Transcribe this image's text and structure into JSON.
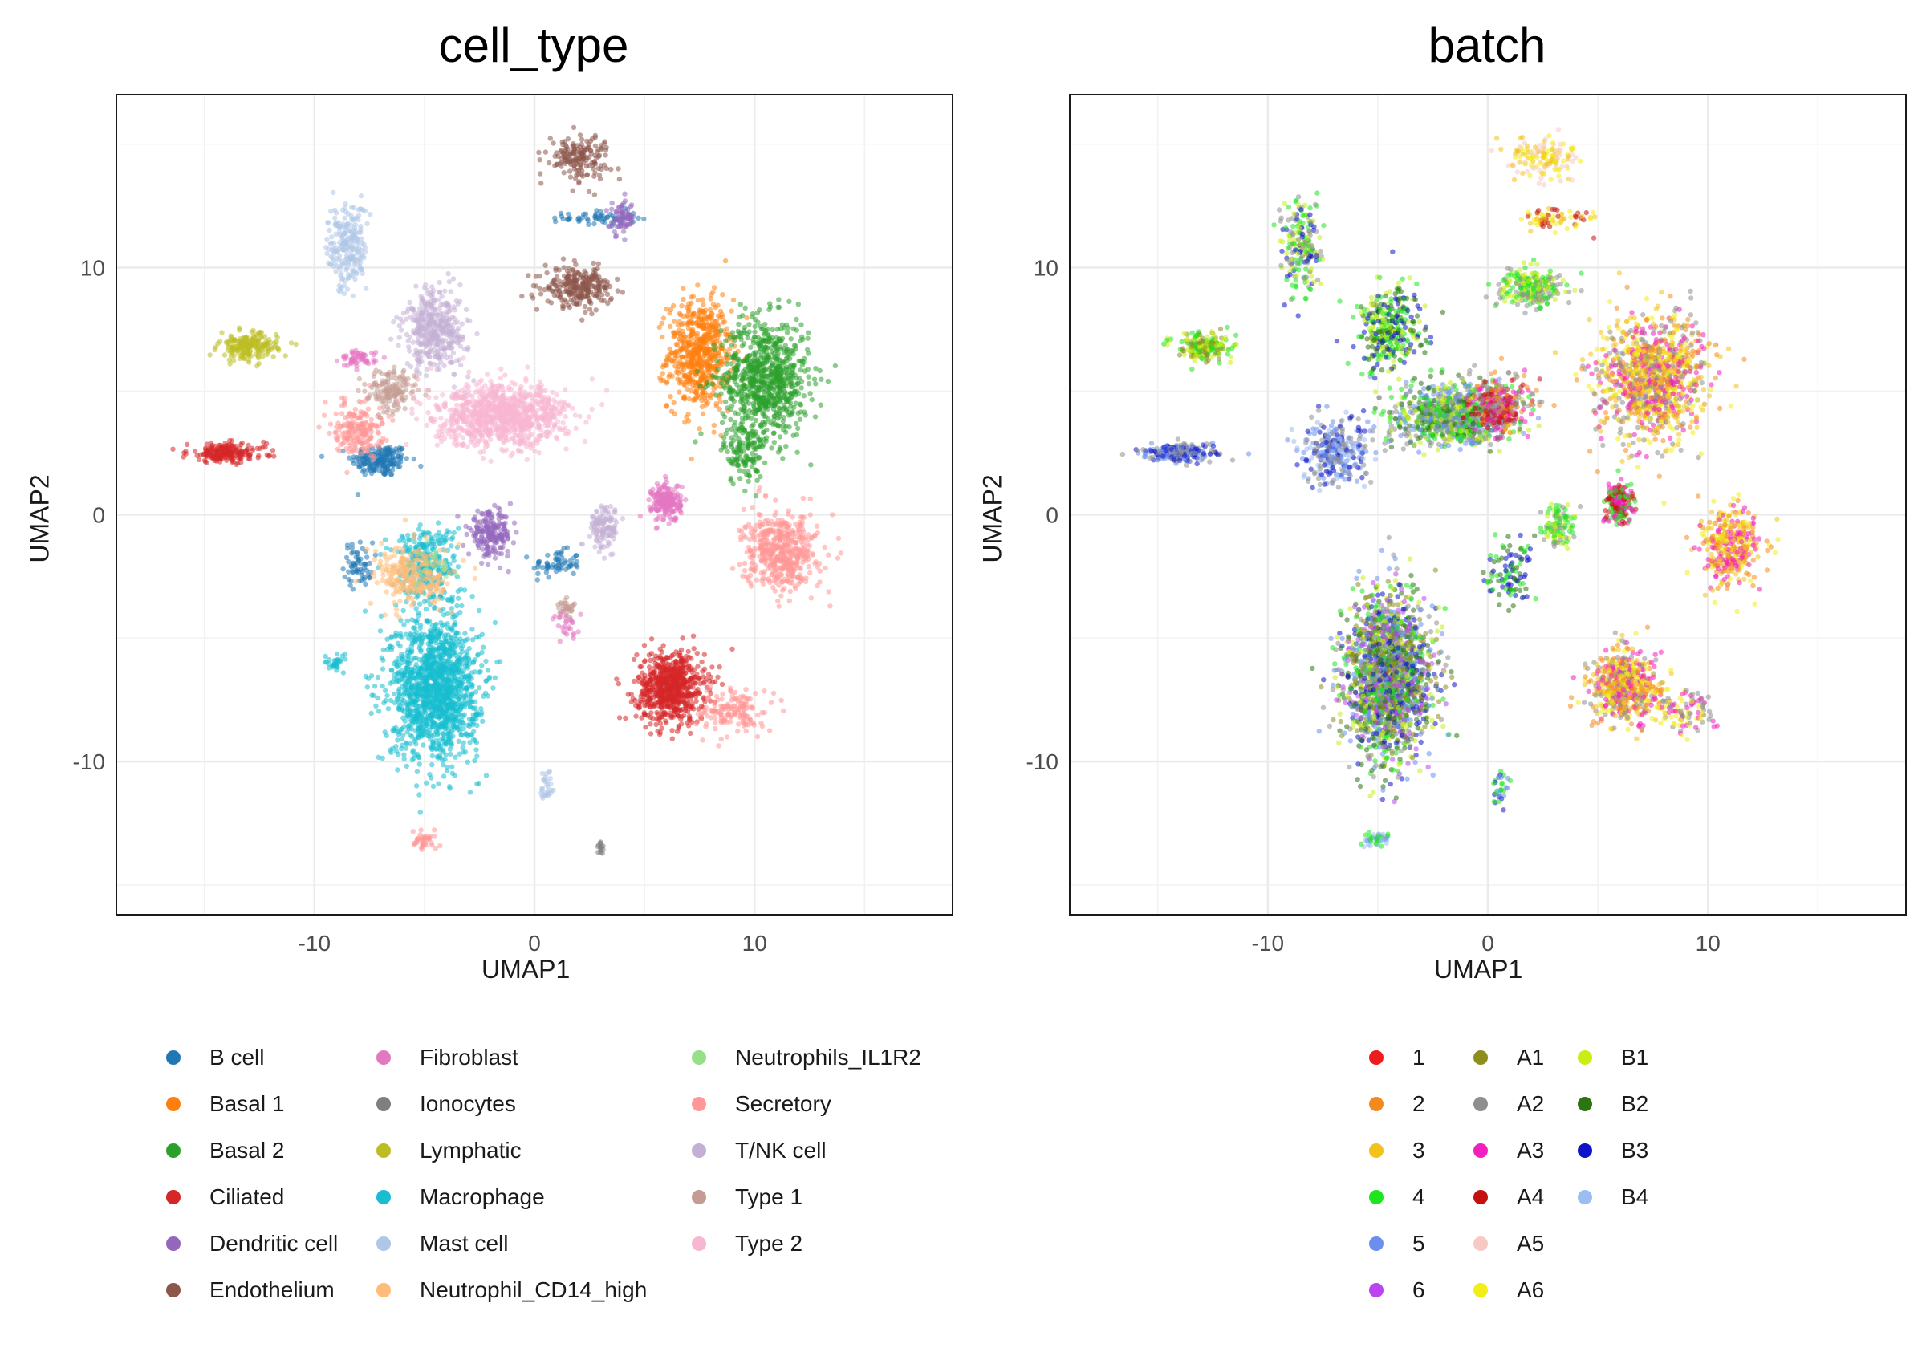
{
  "chart_data": [
    {
      "type": "scatter",
      "title": "cell_type",
      "xlabel": "UMAP1",
      "ylabel": "UMAP2",
      "xlim": [
        -19,
        19
      ],
      "ylim": [
        -16.2,
        17
      ],
      "x_ticks": [
        -10,
        0,
        10
      ],
      "y_ticks": [
        -10,
        0,
        10
      ],
      "x_tick_labels": [
        "-10",
        "0",
        "10"
      ],
      "y_tick_labels": [
        "-10",
        "0",
        "10"
      ],
      "grid": true,
      "legend_position": "bottom",
      "series": [
        {
          "name": "B cell",
          "color": "#1f77b4",
          "clusters": [
            {
              "x": -7,
              "y": 2.2,
              "sx": 1.2,
              "sy": 0.6,
              "n": 180
            },
            {
              "x": 1,
              "y": -2,
              "sx": 1.0,
              "sy": 0.5,
              "n": 60
            },
            {
              "x": 3,
              "y": 12,
              "sx": 1.5,
              "sy": 0.3,
              "n": 60
            },
            {
              "x": -8,
              "y": -2,
              "sx": 0.6,
              "sy": 0.8,
              "n": 60
            }
          ]
        },
        {
          "name": "Basal 1",
          "color": "#ff7f0e",
          "clusters": [
            {
              "x": 7.5,
              "y": 6.5,
              "sx": 1.3,
              "sy": 2.0,
              "n": 600
            }
          ]
        },
        {
          "name": "Basal 2",
          "color": "#2ca02c",
          "clusters": [
            {
              "x": 10.5,
              "y": 5.5,
              "sx": 1.8,
              "sy": 2.2,
              "n": 800
            },
            {
              "x": 9.5,
              "y": 2.5,
              "sx": 0.8,
              "sy": 1.2,
              "n": 120
            }
          ]
        },
        {
          "name": "Ciliated",
          "color": "#d62728",
          "clusters": [
            {
              "x": 6.2,
              "y": -7,
              "sx": 1.4,
              "sy": 1.3,
              "n": 700
            },
            {
              "x": -14,
              "y": 2.5,
              "sx": 1.6,
              "sy": 0.35,
              "n": 200
            }
          ]
        },
        {
          "name": "Dendritic cell",
          "color": "#9467bd",
          "clusters": [
            {
              "x": -2,
              "y": -0.8,
              "sx": 0.9,
              "sy": 0.8,
              "n": 200
            },
            {
              "x": 4,
              "y": 12,
              "sx": 0.5,
              "sy": 0.6,
              "n": 70
            }
          ]
        },
        {
          "name": "Endothelium",
          "color": "#8c564b",
          "clusters": [
            {
              "x": 2,
              "y": 9.2,
              "sx": 1.4,
              "sy": 0.7,
              "n": 260
            },
            {
              "x": 2,
              "y": 14.5,
              "sx": 1.3,
              "sy": 0.8,
              "n": 170
            }
          ]
        },
        {
          "name": "Fibroblast",
          "color": "#e377c2",
          "clusters": [
            {
              "x": 6,
              "y": 0.5,
              "sx": 0.6,
              "sy": 0.7,
              "n": 200
            },
            {
              "x": -8,
              "y": 6.3,
              "sx": 0.7,
              "sy": 0.3,
              "n": 60
            },
            {
              "x": 1.5,
              "y": -4.5,
              "sx": 0.6,
              "sy": 0.6,
              "n": 30
            }
          ]
        },
        {
          "name": "Ionocytes",
          "color": "#7f7f7f",
          "clusters": [
            {
              "x": 3,
              "y": -13.5,
              "sx": 0.2,
              "sy": 0.2,
              "n": 15
            }
          ]
        },
        {
          "name": "Lymphatic",
          "color": "#bcbd22",
          "clusters": [
            {
              "x": -13,
              "y": 6.8,
              "sx": 1.2,
              "sy": 0.5,
              "n": 200
            }
          ]
        },
        {
          "name": "Macrophage",
          "color": "#17becf",
          "clusters": [
            {
              "x": -4.5,
              "y": -7,
              "sx": 1.8,
              "sy": 2.6,
              "n": 1400
            },
            {
              "x": -5,
              "y": -2,
              "sx": 1.3,
              "sy": 1.5,
              "n": 300
            },
            {
              "x": -9,
              "y": -6,
              "sx": 0.5,
              "sy": 0.4,
              "n": 30
            }
          ]
        },
        {
          "name": "Mast cell",
          "color": "#aec7e8",
          "clusters": [
            {
              "x": -8.5,
              "y": 10.8,
              "sx": 0.8,
              "sy": 1.6,
              "n": 220
            },
            {
              "x": 0.6,
              "y": -11,
              "sx": 0.3,
              "sy": 0.7,
              "n": 30
            }
          ]
        },
        {
          "name": "Neutrophil_CD14_high",
          "color": "#ffbb78",
          "clusters": [
            {
              "x": -5.5,
              "y": -2.5,
              "sx": 1.6,
              "sy": 1.1,
              "n": 260
            }
          ]
        },
        {
          "name": "Neutrophils_IL1R2",
          "color": "#98df8a",
          "clusters": [
            {
              "x": -4.5,
              "y": -2,
              "sx": 0.8,
              "sy": 0.8,
              "n": 20
            }
          ]
        },
        {
          "name": "Secretory",
          "color": "#ff9896",
          "clusters": [
            {
              "x": 11.2,
              "y": -1.5,
              "sx": 1.5,
              "sy": 1.4,
              "n": 500
            },
            {
              "x": 9,
              "y": -8,
              "sx": 1.3,
              "sy": 0.8,
              "n": 150
            },
            {
              "x": -8,
              "y": 3.5,
              "sx": 1.0,
              "sy": 1.0,
              "n": 200
            },
            {
              "x": -5,
              "y": -13.2,
              "sx": 0.6,
              "sy": 0.3,
              "n": 40
            }
          ]
        },
        {
          "name": "T/NK cell",
          "color": "#c5b0d5",
          "clusters": [
            {
              "x": -4.5,
              "y": 7.5,
              "sx": 1.3,
              "sy": 1.5,
              "n": 400
            },
            {
              "x": 3.2,
              "y": -0.5,
              "sx": 0.6,
              "sy": 0.8,
              "n": 120
            }
          ]
        },
        {
          "name": "Type 1",
          "color": "#c49c94",
          "clusters": [
            {
              "x": -6.5,
              "y": 5,
              "sx": 1.0,
              "sy": 0.8,
              "n": 150
            },
            {
              "x": 1.5,
              "y": -3.8,
              "sx": 0.4,
              "sy": 0.5,
              "n": 30
            }
          ]
        },
        {
          "name": "Type 2",
          "color": "#f7b6d2",
          "clusters": [
            {
              "x": -1.5,
              "y": 4,
              "sx": 2.7,
              "sy": 1.1,
              "n": 1000
            }
          ]
        }
      ]
    },
    {
      "type": "scatter",
      "title": "batch",
      "xlabel": "UMAP1",
      "ylabel": "UMAP2",
      "xlim": [
        -19,
        19
      ],
      "ylim": [
        -16.2,
        17
      ],
      "x_ticks": [
        -10,
        0,
        10
      ],
      "y_ticks": [
        -10,
        0,
        10
      ],
      "x_tick_labels": [
        "-10",
        "0",
        "10"
      ],
      "y_tick_labels": [
        "-10",
        "0",
        "10"
      ],
      "grid": true,
      "legend_position": "bottom",
      "series": [
        {
          "name": "1",
          "color": "#ee1c1c"
        },
        {
          "name": "2",
          "color": "#f48a1e"
        },
        {
          "name": "3",
          "color": "#f2c21a"
        },
        {
          "name": "4",
          "color": "#1ee61e"
        },
        {
          "name": "5",
          "color": "#6a8fef"
        },
        {
          "name": "6",
          "color": "#bb44f0"
        },
        {
          "name": "A1",
          "color": "#8e8e1f"
        },
        {
          "name": "A2",
          "color": "#8f8f8f"
        },
        {
          "name": "A3",
          "color": "#f21ebd"
        },
        {
          "name": "A4",
          "color": "#c51010"
        },
        {
          "name": "A5",
          "color": "#f7c9c4"
        },
        {
          "name": "A6",
          "color": "#f2ee18"
        },
        {
          "name": "B1",
          "color": "#c9ee16"
        },
        {
          "name": "B2",
          "color": "#2b7512"
        },
        {
          "name": "B3",
          "color": "#0f14c9"
        },
        {
          "name": "B4",
          "color": "#9bbef2"
        }
      ],
      "cluster_groups": [
        {
          "x": 7.5,
          "y": 5.5,
          "sx": 2.2,
          "sy": 2.3,
          "n": 1100,
          "batches": [
            "3",
            "A6",
            "A3",
            "2",
            "A2"
          ]
        },
        {
          "x": 11,
          "y": -1.3,
          "sx": 1.3,
          "sy": 1.4,
          "n": 350,
          "batches": [
            "A3",
            "3",
            "A6",
            "2"
          ]
        },
        {
          "x": 6.2,
          "y": -7,
          "sx": 1.4,
          "sy": 1.3,
          "n": 600,
          "batches": [
            "3",
            "A6",
            "A3",
            "A2",
            "2"
          ]
        },
        {
          "x": 9,
          "y": -8,
          "sx": 1.2,
          "sy": 0.8,
          "n": 100,
          "batches": [
            "A3",
            "A2",
            "A6"
          ]
        },
        {
          "x": 2.5,
          "y": 14.5,
          "sx": 1.4,
          "sy": 0.8,
          "n": 140,
          "batches": [
            "A6",
            "A5",
            "3"
          ]
        },
        {
          "x": 3,
          "y": 12,
          "sx": 1.6,
          "sy": 0.4,
          "n": 70,
          "batches": [
            "A6",
            "A4",
            "3"
          ]
        },
        {
          "x": -4.5,
          "y": -6.5,
          "sx": 1.8,
          "sy": 3.0,
          "n": 1900,
          "batches": [
            "4",
            "6",
            "B2",
            "5",
            "B1",
            "A1",
            "B3",
            "A2"
          ]
        },
        {
          "x": -1.5,
          "y": 4,
          "sx": 2.6,
          "sy": 1.1,
          "n": 900,
          "batches": [
            "B1",
            "A2",
            "4",
            "B2",
            "5"
          ]
        },
        {
          "x": 0.5,
          "y": 4.5,
          "sx": 1.2,
          "sy": 1.0,
          "n": 300,
          "batches": [
            "A4",
            "A2",
            "2",
            "A3"
          ]
        },
        {
          "x": -4.5,
          "y": 7.5,
          "sx": 1.3,
          "sy": 1.5,
          "n": 350,
          "batches": [
            "B1",
            "B3",
            "B2",
            "4"
          ]
        },
        {
          "x": 2,
          "y": 9.2,
          "sx": 1.4,
          "sy": 0.7,
          "n": 240,
          "batches": [
            "4",
            "B1",
            "A2"
          ]
        },
        {
          "x": -8.5,
          "y": 10.8,
          "sx": 0.8,
          "sy": 1.6,
          "n": 200,
          "batches": [
            "B3",
            "B1",
            "4",
            "A2"
          ]
        },
        {
          "x": -14,
          "y": 2.5,
          "sx": 1.6,
          "sy": 0.35,
          "n": 200,
          "batches": [
            "B3",
            "A2",
            "5"
          ]
        },
        {
          "x": -13,
          "y": 6.8,
          "sx": 1.2,
          "sy": 0.5,
          "n": 180,
          "batches": [
            "B1",
            "A1",
            "4"
          ]
        },
        {
          "x": -7,
          "y": 2.5,
          "sx": 1.3,
          "sy": 1.2,
          "n": 300,
          "batches": [
            "B3",
            "B4",
            "5",
            "A2"
          ]
        },
        {
          "x": 6,
          "y": 0.5,
          "sx": 0.6,
          "sy": 0.8,
          "n": 180,
          "batches": [
            "4",
            "A4",
            "A3"
          ]
        },
        {
          "x": 3.2,
          "y": -0.5,
          "sx": 0.6,
          "sy": 0.8,
          "n": 110,
          "batches": [
            "4",
            "B1",
            "A2"
          ]
        },
        {
          "x": 1,
          "y": -2.5,
          "sx": 0.9,
          "sy": 1.2,
          "n": 100,
          "batches": [
            "B3",
            "B2",
            "4"
          ]
        },
        {
          "x": -5,
          "y": -13.2,
          "sx": 0.6,
          "sy": 0.3,
          "n": 40,
          "batches": [
            "4",
            "B4",
            "5"
          ]
        },
        {
          "x": 0.6,
          "y": -11,
          "sx": 0.3,
          "sy": 0.7,
          "n": 30,
          "batches": [
            "B3",
            "5",
            "4"
          ]
        }
      ]
    }
  ]
}
